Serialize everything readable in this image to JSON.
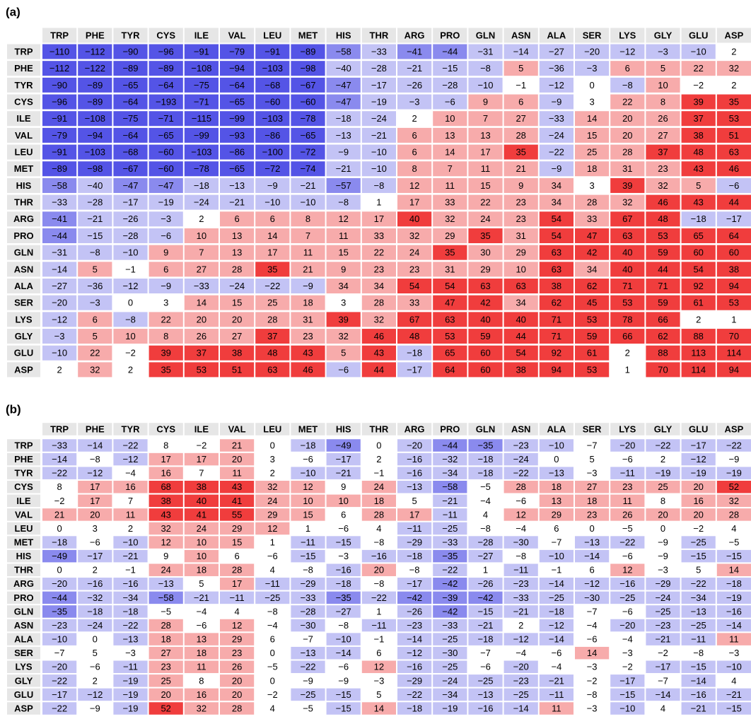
{
  "colors": {
    "strong_negative": "#5454e6",
    "medium_negative": "#8a8aee",
    "light_negative": "#c3c3f5",
    "light_positive": "#f7abab",
    "strong_positive": "#f03d3d",
    "header": "#e6e6e6"
  },
  "panels": [
    {
      "label": "(a)",
      "columns": [
        "TRP",
        "PHE",
        "TYR",
        "CYS",
        "ILE",
        "VAL",
        "LEU",
        "MET",
        "HIS",
        "THR",
        "ARG",
        "PRO",
        "GLN",
        "ASN",
        "ALA",
        "SER",
        "LYS",
        "GLY",
        "GLU",
        "ASP"
      ],
      "rows": [
        {
          "label": "TRP",
          "values": [
            -110,
            -112,
            -90,
            -96,
            -91,
            -79,
            -91,
            -89,
            -58,
            -33,
            -41,
            -44,
            -31,
            -14,
            -27,
            -20,
            -12,
            -3,
            -10,
            2
          ]
        },
        {
          "label": "PHE",
          "values": [
            -112,
            -122,
            -89,
            -89,
            -108,
            -94,
            -103,
            -98,
            -40,
            -28,
            -21,
            -15,
            -8,
            5,
            -36,
            -3,
            6,
            5,
            22,
            32
          ]
        },
        {
          "label": "TYR",
          "values": [
            -90,
            -89,
            -65,
            -64,
            -75,
            -64,
            -68,
            -67,
            -47,
            -17,
            -26,
            -28,
            -10,
            -1,
            -12,
            0,
            -8,
            10,
            -2,
            2
          ]
        },
        {
          "label": "CYS",
          "values": [
            -96,
            -89,
            -64,
            -193,
            -71,
            -65,
            -60,
            -60,
            -47,
            -19,
            -3,
            -6,
            9,
            6,
            -9,
            3,
            22,
            8,
            39,
            35
          ]
        },
        {
          "label": "ILE",
          "values": [
            -91,
            -108,
            -75,
            -71,
            -115,
            -99,
            -103,
            -78,
            -18,
            -24,
            2,
            10,
            7,
            27,
            -33,
            14,
            20,
            26,
            37,
            53
          ]
        },
        {
          "label": "VAL",
          "values": [
            -79,
            -94,
            -64,
            -65,
            -99,
            -93,
            -86,
            -65,
            -13,
            -21,
            6,
            13,
            13,
            28,
            -24,
            15,
            20,
            27,
            38,
            51
          ]
        },
        {
          "label": "LEU",
          "values": [
            -91,
            -103,
            -68,
            -60,
            -103,
            -86,
            -100,
            -72,
            -9,
            -10,
            6,
            14,
            17,
            35,
            -22,
            25,
            28,
            37,
            48,
            63
          ]
        },
        {
          "label": "MET",
          "values": [
            -89,
            -98,
            -67,
            -60,
            -78,
            -65,
            -72,
            -74,
            -21,
            -10,
            8,
            7,
            11,
            21,
            -9,
            18,
            31,
            23,
            43,
            46
          ]
        },
        {
          "label": "HIS",
          "values": [
            -58,
            -40,
            -47,
            -47,
            -18,
            -13,
            -9,
            -21,
            -57,
            -8,
            12,
            11,
            15,
            9,
            34,
            3,
            39,
            32,
            5,
            -6
          ]
        },
        {
          "label": "THR",
          "values": [
            -33,
            -28,
            -17,
            -19,
            -24,
            -21,
            -10,
            -10,
            -8,
            1,
            17,
            33,
            22,
            23,
            34,
            28,
            32,
            46,
            43,
            44
          ]
        },
        {
          "label": "ARG",
          "values": [
            -41,
            -21,
            -26,
            -3,
            2,
            6,
            6,
            8,
            12,
            17,
            40,
            32,
            24,
            23,
            54,
            33,
            67,
            48,
            -18,
            -17
          ]
        },
        {
          "label": "PRO",
          "values": [
            -44,
            -15,
            -28,
            -6,
            10,
            13,
            14,
            7,
            11,
            33,
            32,
            29,
            35,
            31,
            54,
            47,
            63,
            53,
            65,
            64
          ]
        },
        {
          "label": "GLN",
          "values": [
            -31,
            -8,
            -10,
            9,
            7,
            13,
            17,
            11,
            15,
            22,
            24,
            35,
            30,
            29,
            63,
            42,
            40,
            59,
            60,
            60
          ]
        },
        {
          "label": "ASN",
          "values": [
            -14,
            5,
            -1,
            6,
            27,
            28,
            35,
            21,
            9,
            23,
            23,
            31,
            29,
            10,
            63,
            34,
            40,
            44,
            54,
            38
          ]
        },
        {
          "label": "ALA",
          "values": [
            -27,
            -36,
            -12,
            -9,
            -33,
            -24,
            -22,
            -9,
            34,
            34,
            54,
            54,
            63,
            63,
            38,
            62,
            71,
            71,
            92,
            94
          ]
        },
        {
          "label": "SER",
          "values": [
            -20,
            -3,
            0,
            3,
            14,
            15,
            25,
            18,
            3,
            28,
            33,
            47,
            42,
            34,
            62,
            45,
            53,
            59,
            61,
            53
          ]
        },
        {
          "label": "LYS",
          "values": [
            -12,
            6,
            -8,
            22,
            20,
            20,
            28,
            31,
            39,
            32,
            67,
            63,
            40,
            40,
            71,
            53,
            78,
            66,
            2,
            1
          ]
        },
        {
          "label": "GLY",
          "values": [
            -3,
            5,
            10,
            8,
            26,
            27,
            37,
            23,
            32,
            46,
            48,
            53,
            59,
            44,
            71,
            59,
            66,
            62,
            88,
            70
          ]
        },
        {
          "label": "GLU",
          "values": [
            -10,
            22,
            -2,
            39,
            37,
            38,
            48,
            43,
            5,
            43,
            -18,
            65,
            60,
            54,
            92,
            61,
            2,
            88,
            113,
            114
          ]
        },
        {
          "label": "ASP",
          "values": [
            2,
            32,
            2,
            35,
            53,
            51,
            63,
            46,
            -6,
            44,
            -17,
            64,
            60,
            38,
            94,
            53,
            1,
            70,
            114,
            94
          ]
        }
      ]
    },
    {
      "label": "(b)",
      "columns": [
        "TRP",
        "PHE",
        "TYR",
        "CYS",
        "ILE",
        "VAL",
        "LEU",
        "MET",
        "HIS",
        "THR",
        "ARG",
        "PRO",
        "GLN",
        "ASN",
        "ALA",
        "SER",
        "LYS",
        "GLY",
        "GLU",
        "ASP"
      ],
      "rows": [
        {
          "label": "TRP",
          "values": [
            -33,
            -14,
            -22,
            8,
            -2,
            21,
            0,
            -18,
            -49,
            0,
            -20,
            -44,
            -35,
            -23,
            -10,
            -7,
            -20,
            -22,
            -17,
            -22
          ]
        },
        {
          "label": "PHE",
          "values": [
            -14,
            -8,
            -12,
            17,
            17,
            20,
            3,
            -6,
            -17,
            2,
            -16,
            -32,
            -18,
            -24,
            0,
            5,
            -6,
            2,
            -12,
            -9
          ]
        },
        {
          "label": "TYR",
          "values": [
            -22,
            -12,
            -4,
            16,
            7,
            11,
            2,
            -10,
            -21,
            -1,
            -16,
            -34,
            -18,
            -22,
            -13,
            -3,
            -11,
            -19,
            -19,
            -19
          ]
        },
        {
          "label": "CYS",
          "values": [
            8,
            17,
            16,
            68,
            38,
            43,
            32,
            12,
            9,
            24,
            -13,
            -58,
            -5,
            28,
            18,
            27,
            23,
            25,
            20,
            52
          ]
        },
        {
          "label": "ILE",
          "values": [
            -2,
            17,
            7,
            38,
            40,
            41,
            24,
            10,
            10,
            18,
            5,
            -21,
            -4,
            -6,
            13,
            18,
            11,
            8,
            16,
            32
          ]
        },
        {
          "label": "VAL",
          "values": [
            21,
            20,
            11,
            43,
            41,
            55,
            29,
            15,
            6,
            28,
            17,
            -11,
            4,
            12,
            29,
            23,
            26,
            20,
            20,
            28
          ]
        },
        {
          "label": "LEU",
          "values": [
            0,
            3,
            2,
            32,
            24,
            29,
            12,
            1,
            -6,
            4,
            -11,
            -25,
            -8,
            -4,
            6,
            0,
            -5,
            0,
            -2,
            4
          ]
        },
        {
          "label": "MET",
          "values": [
            -18,
            -6,
            -10,
            12,
            10,
            15,
            1,
            -11,
            -15,
            -8,
            -29,
            -33,
            -28,
            -30,
            -7,
            -13,
            -22,
            -9,
            -25,
            -5
          ]
        },
        {
          "label": "HIS",
          "values": [
            -49,
            -17,
            -21,
            9,
            10,
            6,
            -6,
            -15,
            -3,
            -16,
            -18,
            -35,
            -27,
            -8,
            -10,
            -14,
            -6,
            -9,
            -15,
            -15
          ]
        },
        {
          "label": "THR",
          "values": [
            0,
            2,
            -1,
            24,
            18,
            28,
            4,
            -8,
            -16,
            20,
            -8,
            -22,
            1,
            -11,
            -1,
            6,
            12,
            -3,
            5,
            14
          ]
        },
        {
          "label": "ARG",
          "values": [
            -20,
            -16,
            -16,
            -13,
            5,
            17,
            -11,
            -29,
            -18,
            -8,
            -17,
            -42,
            -26,
            -23,
            -14,
            -12,
            -16,
            -29,
            -22,
            -18
          ]
        },
        {
          "label": "PRO",
          "values": [
            -44,
            -32,
            -34,
            -58,
            -21,
            -11,
            -25,
            -33,
            -35,
            -22,
            -42,
            -39,
            -42,
            -33,
            -25,
            -30,
            -25,
            -24,
            -34,
            -19
          ]
        },
        {
          "label": "GLN",
          "values": [
            -35,
            -18,
            -18,
            -5,
            -4,
            4,
            -8,
            -28,
            -27,
            1,
            -26,
            -42,
            -15,
            -21,
            -18,
            -7,
            -6,
            -25,
            -13,
            -16
          ]
        },
        {
          "label": "ASN",
          "values": [
            -23,
            -24,
            -22,
            28,
            -6,
            12,
            -4,
            -30,
            -8,
            -11,
            -23,
            -33,
            -21,
            2,
            -12,
            -4,
            -20,
            -23,
            -25,
            -14
          ]
        },
        {
          "label": "ALA",
          "values": [
            -10,
            0,
            -13,
            18,
            13,
            29,
            6,
            -7,
            -10,
            -1,
            -14,
            -25,
            -18,
            -12,
            -14,
            -6,
            -4,
            -21,
            -11,
            11
          ]
        },
        {
          "label": "SER",
          "values": [
            -7,
            5,
            -3,
            27,
            18,
            23,
            0,
            -13,
            -14,
            6,
            -12,
            -30,
            -7,
            -4,
            -6,
            14,
            -3,
            -2,
            -8,
            -3
          ]
        },
        {
          "label": "LYS",
          "values": [
            -20,
            -6,
            -11,
            23,
            11,
            26,
            -5,
            -22,
            -6,
            12,
            -16,
            -25,
            -6,
            -20,
            -4,
            -3,
            -2,
            -17,
            -15,
            -10
          ]
        },
        {
          "label": "GLY",
          "values": [
            -22,
            2,
            -19,
            25,
            8,
            20,
            0,
            -9,
            -9,
            -3,
            -29,
            -24,
            -25,
            -23,
            -21,
            -2,
            -17,
            -7,
            -14,
            4
          ]
        },
        {
          "label": "GLU",
          "values": [
            -17,
            -12,
            -19,
            20,
            16,
            20,
            -2,
            -25,
            -15,
            5,
            -22,
            -34,
            -13,
            -25,
            -11,
            -8,
            -15,
            -14,
            -16,
            -21
          ]
        },
        {
          "label": "ASP",
          "values": [
            -22,
            -9,
            -19,
            52,
            32,
            28,
            4,
            -5,
            -15,
            14,
            -18,
            -19,
            -16,
            -14,
            11,
            -3,
            -10,
            4,
            -21,
            -15
          ]
        }
      ]
    }
  ]
}
